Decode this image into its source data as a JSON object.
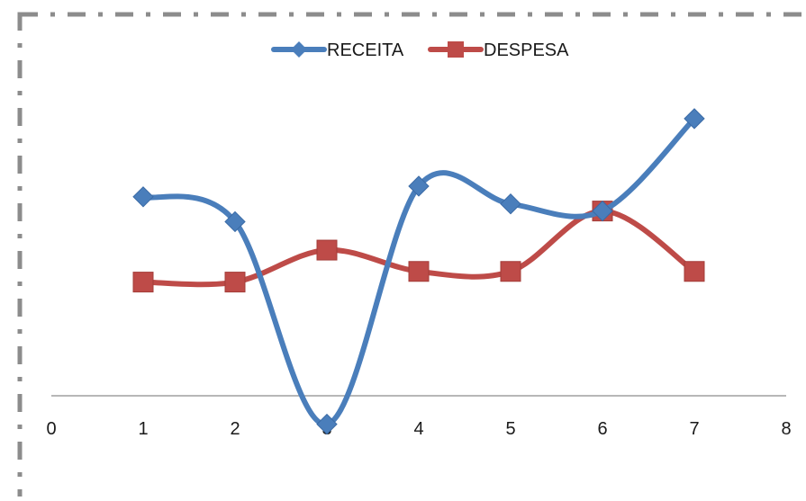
{
  "chart_data": {
    "type": "line",
    "smooth": true,
    "x": [
      1,
      2,
      3,
      4,
      5,
      6,
      7
    ],
    "xlim": [
      0,
      8
    ],
    "x_ticks": [
      "0",
      "1",
      "2",
      "3",
      "4",
      "5",
      "6",
      "7",
      "8"
    ],
    "ylim": [
      -0.5,
      5
    ],
    "y_ticks_shown": false,
    "grid": false,
    "legend": "top-center",
    "series": [
      {
        "name": "RECEITA",
        "color": "#4a7ebb",
        "marker": "diamond",
        "values": [
          2.8,
          2.45,
          -0.4,
          2.95,
          2.7,
          2.6,
          3.9
        ]
      },
      {
        "name": "DESPESA",
        "color": "#be4b48",
        "marker": "square",
        "values": [
          1.6,
          1.6,
          2.05,
          1.75,
          1.75,
          2.6,
          1.75
        ]
      }
    ]
  }
}
